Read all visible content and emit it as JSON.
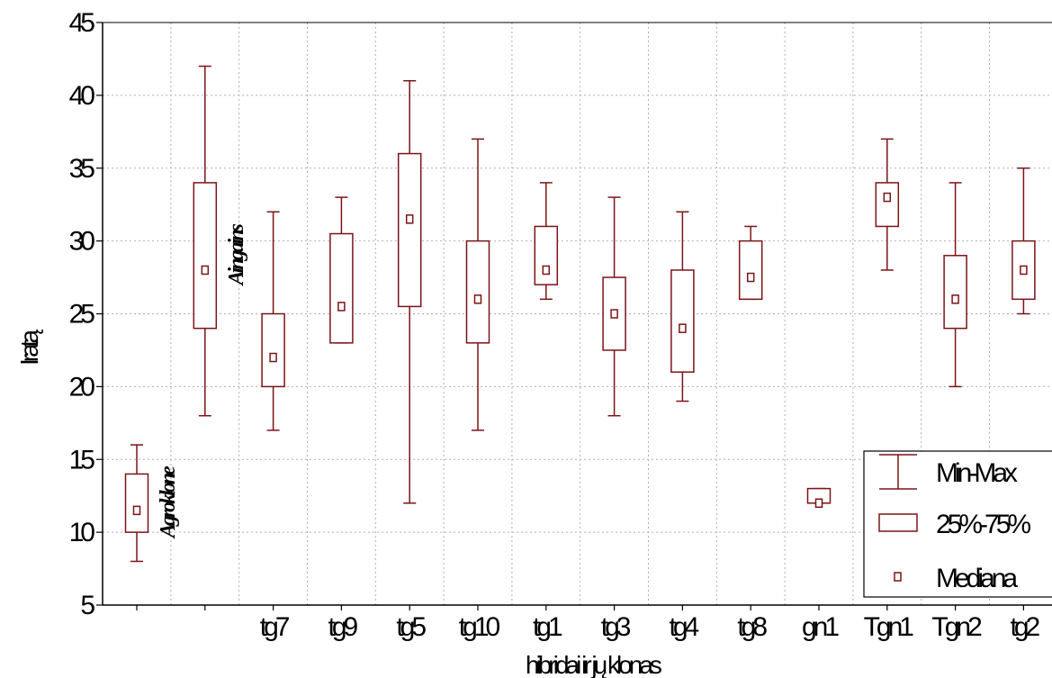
{
  "chart_data": {
    "type": "box",
    "xlabel": "hibridai ir jų klonas",
    "ylabel": "Iratą",
    "ylim": [
      5,
      45
    ],
    "yticks": [
      5,
      10,
      15,
      20,
      25,
      30,
      35,
      40,
      45
    ],
    "grid": true,
    "categories": [
      "",
      "",
      "tg7",
      "tg9",
      "tg5",
      "tg10",
      "tg1",
      "tg3",
      "tg4",
      "tg8",
      "gn1",
      "Tgn1",
      "Tgn2",
      "tg2"
    ],
    "boxes": [
      {
        "min": 8,
        "q1": 10,
        "median": 11.5,
        "q3": 14,
        "max": 16
      },
      {
        "min": 18,
        "q1": 24,
        "median": 28,
        "q3": 34,
        "max": 42
      },
      {
        "min": 17,
        "q1": 20,
        "median": 22,
        "q3": 25,
        "max": 32
      },
      {
        "min": 23,
        "q1": 23,
        "median": 25.5,
        "q3": 30.5,
        "max": 33
      },
      {
        "min": 12,
        "q1": 25.5,
        "median": 31.5,
        "q3": 36,
        "max": 41
      },
      {
        "min": 17,
        "q1": 23,
        "median": 26,
        "q3": 30,
        "max": 37
      },
      {
        "min": 26,
        "q1": 27,
        "median": 28,
        "q3": 31,
        "max": 34
      },
      {
        "min": 18,
        "q1": 22.5,
        "median": 25,
        "q3": 27.5,
        "max": 33
      },
      {
        "min": 19,
        "q1": 21,
        "median": 24,
        "q3": 28,
        "max": 32
      },
      {
        "min": 26,
        "q1": 26,
        "median": 27.5,
        "q3": 30,
        "max": 31
      },
      {
        "min": 12,
        "q1": 12,
        "median": 12,
        "q3": 13,
        "max": 13
      },
      {
        "min": 28,
        "q1": 31,
        "median": 33,
        "q3": 34,
        "max": 37
      },
      {
        "min": 20,
        "q1": 24,
        "median": 26,
        "q3": 29,
        "max": 34
      },
      {
        "min": 25,
        "q1": 26,
        "median": 28,
        "q3": 30,
        "max": 35
      }
    ],
    "annotations": [
      {
        "text": "Agroklone",
        "category_index": 0,
        "y": 12
      },
      {
        "text": "Aingains",
        "category_index": 1,
        "y": 29
      }
    ],
    "legend": {
      "position": "bottom-right",
      "items": [
        {
          "symbol": "whisker",
          "label": "Min-Max"
        },
        {
          "symbol": "box",
          "label": "25%-75%"
        },
        {
          "symbol": "median",
          "label": "Mediana"
        }
      ]
    },
    "color": "#7b1416"
  }
}
